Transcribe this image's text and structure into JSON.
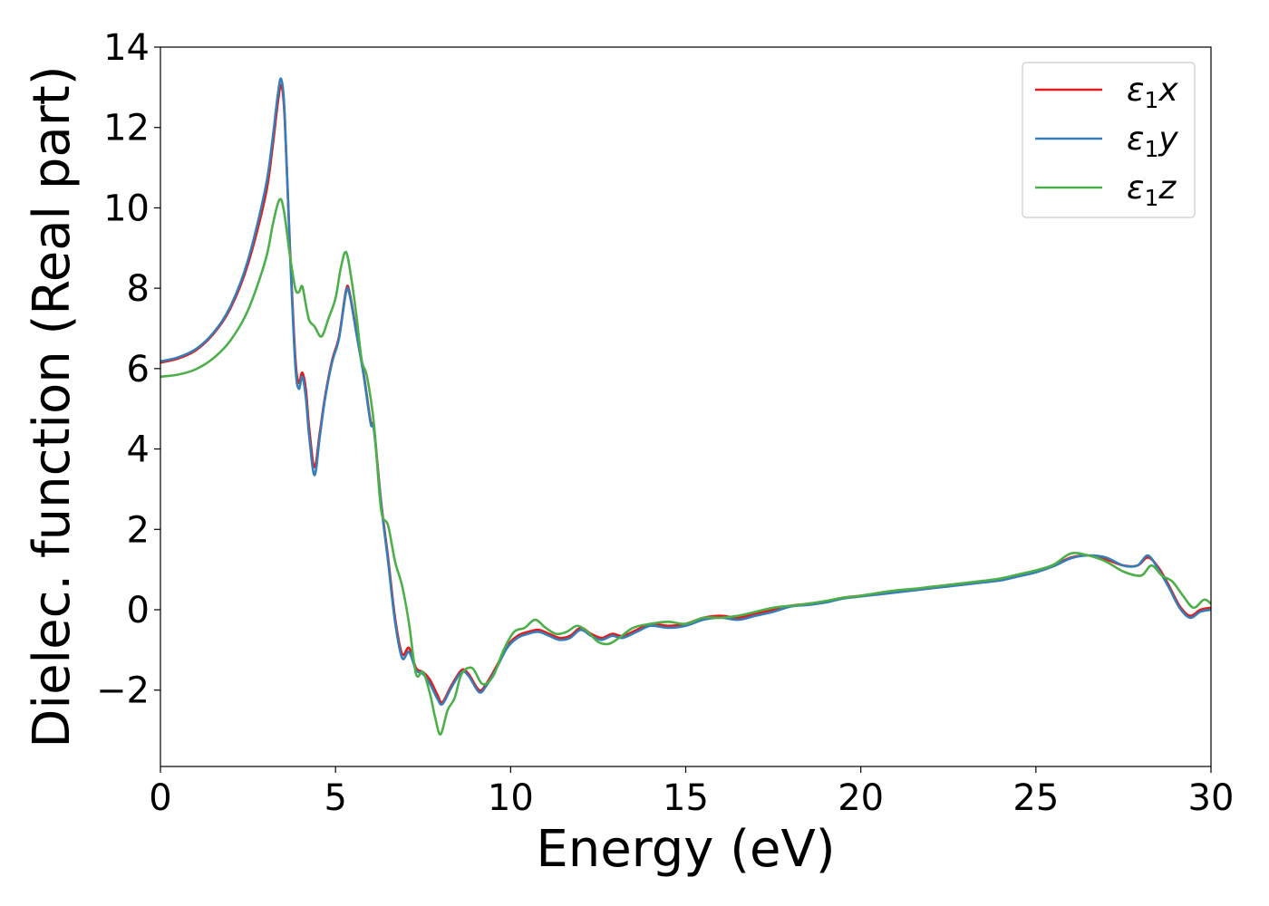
{
  "chart_data": {
    "type": "line",
    "title": "",
    "xlabel": "Energy (eV)",
    "ylabel": "Dielec. function (Real part)",
    "xlim": [
      0,
      30
    ],
    "ylim": [
      -3.9,
      14
    ],
    "xticks": [
      0,
      5,
      10,
      15,
      20,
      25,
      30
    ],
    "yticks": [
      -2,
      0,
      2,
      4,
      6,
      8,
      10,
      12,
      14
    ],
    "ytick_labels": [
      "−2",
      "0",
      "2",
      "4",
      "6",
      "8",
      "10",
      "12",
      "14"
    ],
    "grid": false,
    "legend_position": "top-right",
    "series": [
      {
        "name": "ε₁x",
        "legend_main": "ε",
        "legend_sub": "1",
        "legend_tail": "x",
        "color": "#e41a1c",
        "x": [
          0,
          0.5,
          1.0,
          1.5,
          2.0,
          2.5,
          3.0,
          3.2,
          3.35,
          3.45,
          3.55,
          3.7,
          3.85,
          3.95,
          4.05,
          4.15,
          4.25,
          4.4,
          4.55,
          4.7,
          4.9,
          5.1,
          5.3,
          5.4,
          5.6,
          5.8,
          6.0,
          6.1,
          6.3,
          6.5,
          6.7,
          6.9,
          7.1,
          7.3,
          7.5,
          7.7,
          7.9,
          8.05,
          8.3,
          8.6,
          8.8,
          9.1,
          9.3,
          9.6,
          9.9,
          10.2,
          10.5,
          10.8,
          11.1,
          11.4,
          11.7,
          12.0,
          12.3,
          12.6,
          12.9,
          13.2,
          13.6,
          14.0,
          14.5,
          15.0,
          15.5,
          16.0,
          16.5,
          17.0,
          17.5,
          18.0,
          18.5,
          19.0,
          19.5,
          20.0,
          20.5,
          21.0,
          21.5,
          22.0,
          22.5,
          23.0,
          23.5,
          24.0,
          24.5,
          25.0,
          25.5,
          26.0,
          26.5,
          27.0,
          27.5,
          27.9,
          28.2,
          28.5,
          28.8,
          29.1,
          29.4,
          29.7,
          30.0
        ],
        "values": [
          6.15,
          6.25,
          6.45,
          6.85,
          7.5,
          8.6,
          10.3,
          11.5,
          12.6,
          13.05,
          12.2,
          9.0,
          6.3,
          5.65,
          5.9,
          5.5,
          4.5,
          3.55,
          4.4,
          5.3,
          6.2,
          6.8,
          7.95,
          7.9,
          6.9,
          5.9,
          4.7,
          4.5,
          2.7,
          1.3,
          -0.2,
          -1.1,
          -0.95,
          -1.45,
          -1.55,
          -1.75,
          -2.1,
          -2.3,
          -1.9,
          -1.5,
          -1.6,
          -2.0,
          -1.85,
          -1.4,
          -0.9,
          -0.65,
          -0.55,
          -0.5,
          -0.6,
          -0.7,
          -0.65,
          -0.45,
          -0.6,
          -0.7,
          -0.6,
          -0.65,
          -0.5,
          -0.35,
          -0.4,
          -0.35,
          -0.2,
          -0.15,
          -0.2,
          -0.1,
          0.0,
          0.1,
          0.15,
          0.2,
          0.3,
          0.35,
          0.4,
          0.45,
          0.5,
          0.55,
          0.6,
          0.65,
          0.7,
          0.75,
          0.85,
          0.95,
          1.1,
          1.3,
          1.35,
          1.25,
          1.1,
          1.1,
          1.3,
          1.05,
          0.6,
          0.1,
          -0.15,
          0.0,
          0.05
        ]
      },
      {
        "name": "ε₁y",
        "legend_main": "ε",
        "legend_sub": "1",
        "legend_tail": "y",
        "color": "#377eb8",
        "x": [
          0,
          0.5,
          1.0,
          1.5,
          2.0,
          2.5,
          3.0,
          3.2,
          3.35,
          3.45,
          3.55,
          3.7,
          3.85,
          3.95,
          4.05,
          4.15,
          4.25,
          4.4,
          4.55,
          4.7,
          4.9,
          5.1,
          5.3,
          5.4,
          5.6,
          5.8,
          6.0,
          6.1,
          6.3,
          6.5,
          6.7,
          6.9,
          7.1,
          7.3,
          7.5,
          7.7,
          7.9,
          8.05,
          8.3,
          8.6,
          8.8,
          9.1,
          9.3,
          9.6,
          9.9,
          10.2,
          10.5,
          10.8,
          11.1,
          11.4,
          11.7,
          12.0,
          12.3,
          12.6,
          12.9,
          13.2,
          13.6,
          14.0,
          14.5,
          15.0,
          15.5,
          16.0,
          16.5,
          17.0,
          17.5,
          18.0,
          18.5,
          19.0,
          19.5,
          20.0,
          20.5,
          21.0,
          21.5,
          22.0,
          22.5,
          23.0,
          23.5,
          24.0,
          24.5,
          25.0,
          25.5,
          26.0,
          26.5,
          27.0,
          27.5,
          27.9,
          28.2,
          28.5,
          28.8,
          29.1,
          29.4,
          29.7,
          30.0
        ],
        "values": [
          6.18,
          6.28,
          6.48,
          6.88,
          7.55,
          8.7,
          10.5,
          11.7,
          12.8,
          13.2,
          12.3,
          8.9,
          6.1,
          5.5,
          5.8,
          5.3,
          4.3,
          3.35,
          4.3,
          5.25,
          6.15,
          6.75,
          7.9,
          7.85,
          6.85,
          5.85,
          4.65,
          4.45,
          2.65,
          1.2,
          -0.3,
          -1.2,
          -1.05,
          -1.5,
          -1.6,
          -1.85,
          -2.2,
          -2.35,
          -1.95,
          -1.55,
          -1.65,
          -2.05,
          -1.9,
          -1.45,
          -0.95,
          -0.7,
          -0.6,
          -0.55,
          -0.65,
          -0.75,
          -0.7,
          -0.5,
          -0.65,
          -0.75,
          -0.65,
          -0.7,
          -0.55,
          -0.4,
          -0.45,
          -0.4,
          -0.25,
          -0.2,
          -0.25,
          -0.15,
          -0.05,
          0.08,
          0.12,
          0.18,
          0.28,
          0.33,
          0.38,
          0.43,
          0.48,
          0.53,
          0.58,
          0.63,
          0.68,
          0.73,
          0.83,
          0.93,
          1.08,
          1.28,
          1.35,
          1.3,
          1.1,
          1.1,
          1.35,
          1.0,
          0.55,
          0.05,
          -0.2,
          -0.05,
          0.0
        ]
      },
      {
        "name": "ε₁z",
        "legend_main": "ε",
        "legend_sub": "1",
        "legend_tail": "z",
        "color": "#4daf4a",
        "x": [
          0,
          0.5,
          1.0,
          1.5,
          2.0,
          2.5,
          3.0,
          3.2,
          3.35,
          3.45,
          3.55,
          3.7,
          3.85,
          3.95,
          4.05,
          4.15,
          4.25,
          4.4,
          4.6,
          4.8,
          5.0,
          5.15,
          5.3,
          5.45,
          5.6,
          5.75,
          5.9,
          6.1,
          6.3,
          6.5,
          6.7,
          6.9,
          7.1,
          7.3,
          7.5,
          7.7,
          7.85,
          8.0,
          8.2,
          8.4,
          8.6,
          8.9,
          9.2,
          9.5,
          9.8,
          10.1,
          10.4,
          10.7,
          11.0,
          11.3,
          11.6,
          11.9,
          12.2,
          12.5,
          12.8,
          13.1,
          13.5,
          14.0,
          14.5,
          15.0,
          15.5,
          16.0,
          16.5,
          17.0,
          17.5,
          18.0,
          18.5,
          19.0,
          19.5,
          20.0,
          20.5,
          21.0,
          21.5,
          22.0,
          22.5,
          23.0,
          23.5,
          24.0,
          24.5,
          25.0,
          25.5,
          26.0,
          26.5,
          27.0,
          27.5,
          28.0,
          28.3,
          28.6,
          28.9,
          29.2,
          29.5,
          29.8,
          30.0
        ],
        "values": [
          5.8,
          5.85,
          5.98,
          6.25,
          6.7,
          7.45,
          8.7,
          9.55,
          10.1,
          10.2,
          9.8,
          8.8,
          8.0,
          7.9,
          8.05,
          7.6,
          7.2,
          7.05,
          6.8,
          7.25,
          7.75,
          8.5,
          8.9,
          8.25,
          7.3,
          6.2,
          5.8,
          4.6,
          2.5,
          2.1,
          1.2,
          0.6,
          -0.35,
          -1.6,
          -1.55,
          -2.1,
          -2.7,
          -3.1,
          -2.5,
          -2.2,
          -1.6,
          -1.45,
          -1.85,
          -1.65,
          -1.0,
          -0.55,
          -0.45,
          -0.25,
          -0.45,
          -0.6,
          -0.55,
          -0.4,
          -0.55,
          -0.8,
          -0.85,
          -0.7,
          -0.45,
          -0.35,
          -0.3,
          -0.35,
          -0.2,
          -0.2,
          -0.15,
          -0.05,
          0.05,
          0.1,
          0.15,
          0.22,
          0.3,
          0.35,
          0.42,
          0.48,
          0.52,
          0.57,
          0.62,
          0.67,
          0.72,
          0.78,
          0.88,
          0.98,
          1.12,
          1.4,
          1.35,
          1.2,
          0.95,
          0.85,
          1.1,
          0.85,
          0.7,
          0.35,
          0.05,
          0.25,
          0.15
        ]
      }
    ]
  }
}
